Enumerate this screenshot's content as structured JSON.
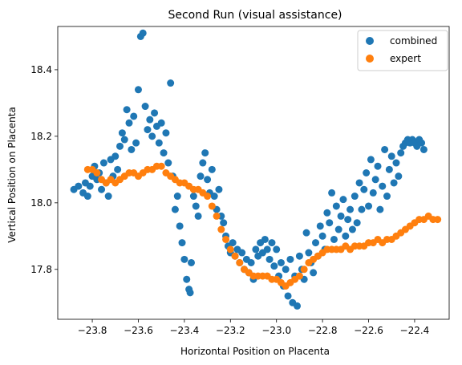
{
  "chart_data": {
    "type": "scatter",
    "title": "Second Run (visual assistance)",
    "xlabel": "Horizontal Position on Placenta",
    "ylabel": "Vertical Position on Placenta",
    "xlim": [
      -23.95,
      -22.25
    ],
    "ylim": [
      17.65,
      18.53
    ],
    "xticks": [
      -23.8,
      -23.6,
      -23.4,
      -23.2,
      -23.0,
      -22.8,
      -22.6,
      -22.4
    ],
    "xtick_labels": [
      "−23.8",
      "−23.6",
      "−23.4",
      "−23.2",
      "−23.0",
      "−22.8",
      "−22.6",
      "−22.4"
    ],
    "yticks": [
      17.8,
      18.0,
      18.2,
      18.4
    ],
    "ytick_labels": [
      "17.8",
      "18.0",
      "18.2",
      "18.4"
    ],
    "grid": false,
    "legend_position": "top-right",
    "series": [
      {
        "name": "combined",
        "color": "#1f77b4",
        "points": [
          [
            -23.88,
            18.04
          ],
          [
            -23.86,
            18.05
          ],
          [
            -23.84,
            18.03
          ],
          [
            -23.83,
            18.06
          ],
          [
            -23.82,
            18.02
          ],
          [
            -23.81,
            18.05
          ],
          [
            -23.8,
            18.08
          ],
          [
            -23.79,
            18.11
          ],
          [
            -23.78,
            18.07
          ],
          [
            -23.77,
            18.09
          ],
          [
            -23.76,
            18.04
          ],
          [
            -23.75,
            18.12
          ],
          [
            -23.74,
            18.06
          ],
          [
            -23.73,
            18.02
          ],
          [
            -23.72,
            18.13
          ],
          [
            -23.71,
            18.08
          ],
          [
            -23.7,
            18.14
          ],
          [
            -23.69,
            18.1
          ],
          [
            -23.68,
            18.17
          ],
          [
            -23.67,
            18.21
          ],
          [
            -23.66,
            18.19
          ],
          [
            -23.65,
            18.28
          ],
          [
            -23.64,
            18.24
          ],
          [
            -23.63,
            18.16
          ],
          [
            -23.62,
            18.26
          ],
          [
            -23.61,
            18.18
          ],
          [
            -23.6,
            18.34
          ],
          [
            -23.59,
            18.5
          ],
          [
            -23.58,
            18.51
          ],
          [
            -23.57,
            18.29
          ],
          [
            -23.56,
            18.22
          ],
          [
            -23.55,
            18.25
          ],
          [
            -23.54,
            18.2
          ],
          [
            -23.53,
            18.27
          ],
          [
            -23.52,
            18.23
          ],
          [
            -23.51,
            18.18
          ],
          [
            -23.5,
            18.24
          ],
          [
            -23.49,
            18.15
          ],
          [
            -23.48,
            18.21
          ],
          [
            -23.47,
            18.12
          ],
          [
            -23.46,
            18.36
          ],
          [
            -23.45,
            18.08
          ],
          [
            -23.44,
            17.98
          ],
          [
            -23.43,
            18.02
          ],
          [
            -23.42,
            17.93
          ],
          [
            -23.41,
            17.88
          ],
          [
            -23.4,
            17.83
          ],
          [
            -23.39,
            17.77
          ],
          [
            -23.38,
            17.74
          ],
          [
            -23.375,
            17.73
          ],
          [
            -23.37,
            17.82
          ],
          [
            -23.36,
            18.02
          ],
          [
            -23.35,
            17.99
          ],
          [
            -23.34,
            17.96
          ],
          [
            -23.33,
            18.08
          ],
          [
            -23.32,
            18.12
          ],
          [
            -23.31,
            18.15
          ],
          [
            -23.3,
            18.07
          ],
          [
            -23.29,
            18.03
          ],
          [
            -23.28,
            18.1
          ],
          [
            -23.27,
            18.02
          ],
          [
            -23.26,
            17.98
          ],
          [
            -23.25,
            18.04
          ],
          [
            -23.24,
            17.96
          ],
          [
            -23.23,
            17.94
          ],
          [
            -23.22,
            17.9
          ],
          [
            -23.21,
            17.87
          ],
          [
            -23.2,
            17.85
          ],
          [
            -23.19,
            17.88
          ],
          [
            -23.18,
            17.84
          ],
          [
            -23.17,
            17.86
          ],
          [
            -23.16,
            17.82
          ],
          [
            -23.15,
            17.85
          ],
          [
            -23.14,
            17.8
          ],
          [
            -23.13,
            17.83
          ],
          [
            -23.12,
            17.79
          ],
          [
            -23.11,
            17.82
          ],
          [
            -23.1,
            17.77
          ],
          [
            -23.09,
            17.86
          ],
          [
            -23.08,
            17.84
          ],
          [
            -23.07,
            17.88
          ],
          [
            -23.06,
            17.85
          ],
          [
            -23.05,
            17.89
          ],
          [
            -23.04,
            17.86
          ],
          [
            -23.03,
            17.83
          ],
          [
            -23.02,
            17.88
          ],
          [
            -23.01,
            17.81
          ],
          [
            -23.0,
            17.86
          ],
          [
            -22.99,
            17.78
          ],
          [
            -22.98,
            17.82
          ],
          [
            -22.97,
            17.75
          ],
          [
            -22.96,
            17.8
          ],
          [
            -22.95,
            17.72
          ],
          [
            -22.94,
            17.83
          ],
          [
            -22.93,
            17.7
          ],
          [
            -22.92,
            17.78
          ],
          [
            -22.91,
            17.69
          ],
          [
            -22.9,
            17.84
          ],
          [
            -22.89,
            17.8
          ],
          [
            -22.88,
            17.77
          ],
          [
            -22.87,
            17.91
          ],
          [
            -22.86,
            17.85
          ],
          [
            -22.85,
            17.82
          ],
          [
            -22.84,
            17.79
          ],
          [
            -22.83,
            17.88
          ],
          [
            -22.82,
            17.84
          ],
          [
            -22.81,
            17.93
          ],
          [
            -22.8,
            17.9
          ],
          [
            -22.79,
            17.86
          ],
          [
            -22.78,
            17.97
          ],
          [
            -22.77,
            17.94
          ],
          [
            -22.76,
            18.03
          ],
          [
            -22.75,
            17.89
          ],
          [
            -22.74,
            17.99
          ],
          [
            -22.73,
            17.92
          ],
          [
            -22.72,
            17.96
          ],
          [
            -22.71,
            18.01
          ],
          [
            -22.7,
            17.9
          ],
          [
            -22.69,
            17.95
          ],
          [
            -22.68,
            17.98
          ],
          [
            -22.67,
            17.92
          ],
          [
            -22.66,
            18.02
          ],
          [
            -22.65,
            17.94
          ],
          [
            -22.64,
            18.06
          ],
          [
            -22.63,
            17.98
          ],
          [
            -22.62,
            18.04
          ],
          [
            -22.61,
            18.09
          ],
          [
            -22.6,
            17.99
          ],
          [
            -22.59,
            18.13
          ],
          [
            -22.58,
            18.03
          ],
          [
            -22.57,
            18.07
          ],
          [
            -22.56,
            18.11
          ],
          [
            -22.55,
            17.98
          ],
          [
            -22.54,
            18.05
          ],
          [
            -22.53,
            18.16
          ],
          [
            -22.52,
            18.02
          ],
          [
            -22.51,
            18.1
          ],
          [
            -22.5,
            18.14
          ],
          [
            -22.49,
            18.06
          ],
          [
            -22.48,
            18.12
          ],
          [
            -22.47,
            18.08
          ],
          [
            -22.46,
            18.15
          ],
          [
            -22.45,
            18.17
          ],
          [
            -22.44,
            18.18
          ],
          [
            -22.43,
            18.19
          ],
          [
            -22.42,
            18.18
          ],
          [
            -22.41,
            18.19
          ],
          [
            -22.4,
            18.18
          ],
          [
            -22.39,
            18.17
          ],
          [
            -22.38,
            18.19
          ],
          [
            -22.37,
            18.18
          ],
          [
            -22.36,
            18.16
          ]
        ]
      },
      {
        "name": "expert",
        "color": "#ff7f0e",
        "points": [
          [
            -23.82,
            18.1
          ],
          [
            -23.8,
            18.1
          ],
          [
            -23.78,
            18.09
          ],
          [
            -23.76,
            18.07
          ],
          [
            -23.74,
            18.06
          ],
          [
            -23.72,
            18.07
          ],
          [
            -23.7,
            18.06
          ],
          [
            -23.68,
            18.07
          ],
          [
            -23.66,
            18.08
          ],
          [
            -23.64,
            18.09
          ],
          [
            -23.62,
            18.09
          ],
          [
            -23.6,
            18.08
          ],
          [
            -23.58,
            18.09
          ],
          [
            -23.56,
            18.1
          ],
          [
            -23.54,
            18.1
          ],
          [
            -23.52,
            18.11
          ],
          [
            -23.5,
            18.11
          ],
          [
            -23.48,
            18.09
          ],
          [
            -23.46,
            18.08
          ],
          [
            -23.44,
            18.07
          ],
          [
            -23.42,
            18.06
          ],
          [
            -23.4,
            18.06
          ],
          [
            -23.38,
            18.05
          ],
          [
            -23.36,
            18.04
          ],
          [
            -23.34,
            18.04
          ],
          [
            -23.32,
            18.03
          ],
          [
            -23.3,
            18.02
          ],
          [
            -23.28,
            17.99
          ],
          [
            -23.26,
            17.96
          ],
          [
            -23.24,
            17.92
          ],
          [
            -23.22,
            17.89
          ],
          [
            -23.2,
            17.86
          ],
          [
            -23.18,
            17.84
          ],
          [
            -23.16,
            17.82
          ],
          [
            -23.14,
            17.8
          ],
          [
            -23.12,
            17.79
          ],
          [
            -23.1,
            17.78
          ],
          [
            -23.08,
            17.78
          ],
          [
            -23.06,
            17.78
          ],
          [
            -23.04,
            17.78
          ],
          [
            -23.02,
            17.77
          ],
          [
            -23.0,
            17.77
          ],
          [
            -22.98,
            17.76
          ],
          [
            -22.96,
            17.75
          ],
          [
            -22.94,
            17.76
          ],
          [
            -22.92,
            17.77
          ],
          [
            -22.9,
            17.78
          ],
          [
            -22.88,
            17.8
          ],
          [
            -22.86,
            17.82
          ],
          [
            -22.84,
            17.83
          ],
          [
            -22.82,
            17.84
          ],
          [
            -22.8,
            17.85
          ],
          [
            -22.78,
            17.86
          ],
          [
            -22.76,
            17.86
          ],
          [
            -22.74,
            17.86
          ],
          [
            -22.72,
            17.86
          ],
          [
            -22.7,
            17.87
          ],
          [
            -22.68,
            17.86
          ],
          [
            -22.66,
            17.87
          ],
          [
            -22.64,
            17.87
          ],
          [
            -22.62,
            17.87
          ],
          [
            -22.6,
            17.88
          ],
          [
            -22.58,
            17.88
          ],
          [
            -22.56,
            17.89
          ],
          [
            -22.54,
            17.88
          ],
          [
            -22.52,
            17.89
          ],
          [
            -22.5,
            17.89
          ],
          [
            -22.48,
            17.9
          ],
          [
            -22.46,
            17.91
          ],
          [
            -22.44,
            17.92
          ],
          [
            -22.42,
            17.93
          ],
          [
            -22.4,
            17.94
          ],
          [
            -22.38,
            17.95
          ],
          [
            -22.36,
            17.95
          ],
          [
            -22.34,
            17.96
          ],
          [
            -22.32,
            17.95
          ],
          [
            -22.3,
            17.95
          ]
        ]
      }
    ]
  }
}
